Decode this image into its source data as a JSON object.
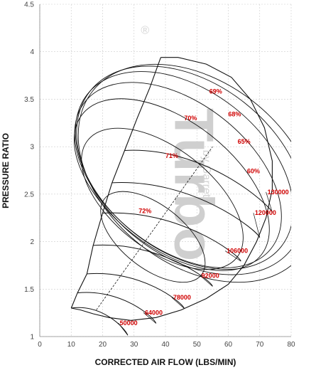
{
  "chart_data": {
    "type": "line",
    "title": "",
    "xlabel": "CORRECTED AIR FLOW (LBS/MIN)",
    "ylabel": "PRESSURE RATIO",
    "xlim": [
      0,
      80
    ],
    "ylim": [
      1,
      4.5
    ],
    "xticks": [
      0,
      10,
      20,
      30,
      40,
      50,
      60,
      70,
      80
    ],
    "yticks": [
      1,
      1.5,
      2,
      2.5,
      3,
      3.5,
      4,
      4.5
    ],
    "grid": true,
    "watermark": {
      "logo": "Turbo",
      "sub": "by Garrett",
      "mark": "®"
    },
    "surge_line": [
      [
        10,
        1.3
      ],
      [
        12,
        1.46
      ],
      [
        15,
        1.66
      ],
      [
        17,
        1.96
      ],
      [
        20,
        2.3
      ],
      [
        23,
        2.62
      ],
      [
        27,
        2.96
      ],
      [
        31,
        3.3
      ],
      [
        35,
        3.62
      ],
      [
        38.5,
        3.94
      ]
    ],
    "max_flow_line": [
      [
        38.5,
        3.94
      ],
      [
        44,
        3.94
      ],
      [
        53,
        3.87
      ],
      [
        61,
        3.73
      ],
      [
        67,
        3.5
      ],
      [
        71.5,
        3.2
      ],
      [
        74,
        2.85
      ],
      [
        74,
        2.55
      ],
      [
        72,
        2.25
      ],
      [
        69,
        2.0
      ],
      [
        65,
        1.75
      ],
      [
        60,
        1.55
      ],
      [
        53,
        1.4
      ],
      [
        45,
        1.28
      ],
      [
        37,
        1.2
      ],
      [
        29,
        1.17
      ],
      [
        22,
        1.2
      ],
      [
        17,
        1.24
      ],
      [
        13,
        1.28
      ],
      [
        10,
        1.3
      ]
    ],
    "speed_lines": [
      {
        "label": "50000",
        "pr": 1.3,
        "flow_min": 10,
        "flow_max": 28,
        "label_xy": [
          25,
          1.12
        ]
      },
      {
        "label": "64000",
        "pr": 1.46,
        "flow_min": 12,
        "flow_max": 37,
        "label_xy": [
          33,
          1.23
        ]
      },
      {
        "label": "78000",
        "pr": 1.66,
        "flow_min": 15,
        "flow_max": 46,
        "label_xy": [
          42,
          1.39
        ]
      },
      {
        "label": "92000",
        "pr": 1.96,
        "flow_min": 17,
        "flow_max": 55,
        "label_xy": [
          51,
          1.62
        ]
      },
      {
        "label": "106000",
        "pr": 2.3,
        "flow_min": 20,
        "flow_max": 64,
        "label_xy": [
          59,
          1.88
        ]
      },
      {
        "label": "120000",
        "pr": 2.62,
        "flow_min": 23,
        "flow_max": 70,
        "label_xy": [
          68,
          2.28
        ]
      },
      {
        "label": "130000",
        "pr": 2.96,
        "flow_min": 27,
        "flow_max": 74,
        "label_xy": [
          72,
          2.5
        ]
      }
    ],
    "efficiency_islands": [
      {
        "label": "72%",
        "cx": 36,
        "cy": 2.05,
        "rx": 10,
        "ry": 0.65,
        "label_xy": [
          33.5,
          2.3
        ]
      },
      {
        "label": "71%",
        "cx": 39,
        "cy": 2.45,
        "rx": 16,
        "ry": 1.0,
        "label_xy": [
          42,
          2.88
        ]
      },
      {
        "label": "70%",
        "cx": 42,
        "cy": 2.6,
        "rx": 20,
        "ry": 1.2,
        "label_xy": [
          48,
          3.28
        ]
      },
      {
        "label": "69%",
        "cx": 44,
        "cy": 2.7,
        "rx": 23,
        "ry": 1.25,
        "label_xy": [
          56,
          3.56
        ]
      },
      {
        "label": "68%",
        "cx": 46,
        "cy": 2.75,
        "rx": 25.5,
        "ry": 1.3,
        "label_xy": [
          62,
          3.32
        ]
      },
      {
        "label": "65%",
        "cx": 48,
        "cy": 2.75,
        "rx": 27.5,
        "ry": 1.35,
        "label_xy": [
          65,
          3.03
        ]
      },
      {
        "label": "60%",
        "cx": 50,
        "cy": 2.72,
        "rx": 29,
        "ry": 1.4,
        "label_xy": [
          68,
          2.72
        ]
      }
    ],
    "peak_efficiency_line": [
      [
        18,
        1.28
      ],
      [
        55,
        3.0
      ]
    ]
  }
}
